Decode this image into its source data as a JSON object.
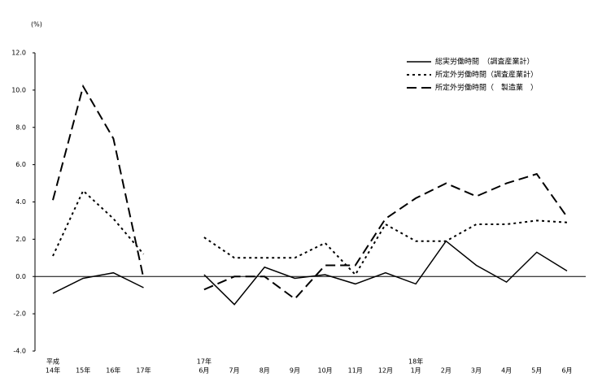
{
  "chart_data": {
    "type": "line",
    "y_label": "(%)",
    "categories": [
      [
        "平成",
        "14年"
      ],
      [
        "15年"
      ],
      [
        "16年"
      ],
      [
        "17年"
      ],
      null,
      [
        "17年",
        "6月"
      ],
      [
        "7月"
      ],
      [
        "8月"
      ],
      [
        "9月"
      ],
      [
        "10月"
      ],
      [
        "11月"
      ],
      [
        "12月"
      ],
      [
        "18年",
        "1月"
      ],
      [
        "2月"
      ],
      [
        "3月"
      ],
      [
        "4月"
      ],
      [
        "5月"
      ],
      [
        "6月"
      ]
    ],
    "series": [
      {
        "name": "総実労働時間　（調査産業計）",
        "color": "#000000",
        "style": "solid",
        "values": [
          -0.9,
          -0.1,
          0.2,
          -0.6,
          null,
          0.1,
          -1.5,
          0.5,
          -0.1,
          0.1,
          -0.4,
          0.2,
          -0.4,
          1.9,
          0.6,
          -0.3,
          1.3,
          0.3
        ]
      },
      {
        "name": "所定外労働時間（調査産業計）",
        "color": "#000000",
        "style": "dotted",
        "values": [
          1.1,
          4.6,
          3.1,
          1.2,
          null,
          2.1,
          1.0,
          1.0,
          1.0,
          1.8,
          0.1,
          2.8,
          1.9,
          1.9,
          2.8,
          2.8,
          3.0,
          2.9
        ]
      },
      {
        "name": "所定外労働時間（　製造業　）",
        "color": "#000000",
        "style": "dashed",
        "values": [
          4.1,
          10.2,
          7.4,
          -0.1,
          null,
          -0.7,
          0.0,
          0.0,
          -1.2,
          0.6,
          0.6,
          3.1,
          4.2,
          5.0,
          4.3,
          5.0,
          5.5,
          3.2
        ]
      }
    ],
    "ylim": [
      -4,
      12
    ],
    "yticks": [
      {
        "value": -4,
        "label": "-4.0"
      },
      {
        "value": -2,
        "label": "-2.0"
      },
      {
        "value": 0,
        "label": "0.0"
      },
      {
        "value": 2,
        "label": "2.0"
      },
      {
        "value": 4,
        "label": "4.0"
      },
      {
        "value": 6,
        "label": "6.0"
      },
      {
        "value": 8,
        "label": "8.0"
      },
      {
        "value": 10,
        "label": "10.0"
      },
      {
        "value": 12,
        "label": "12.0"
      }
    ],
    "zero_line": true
  }
}
